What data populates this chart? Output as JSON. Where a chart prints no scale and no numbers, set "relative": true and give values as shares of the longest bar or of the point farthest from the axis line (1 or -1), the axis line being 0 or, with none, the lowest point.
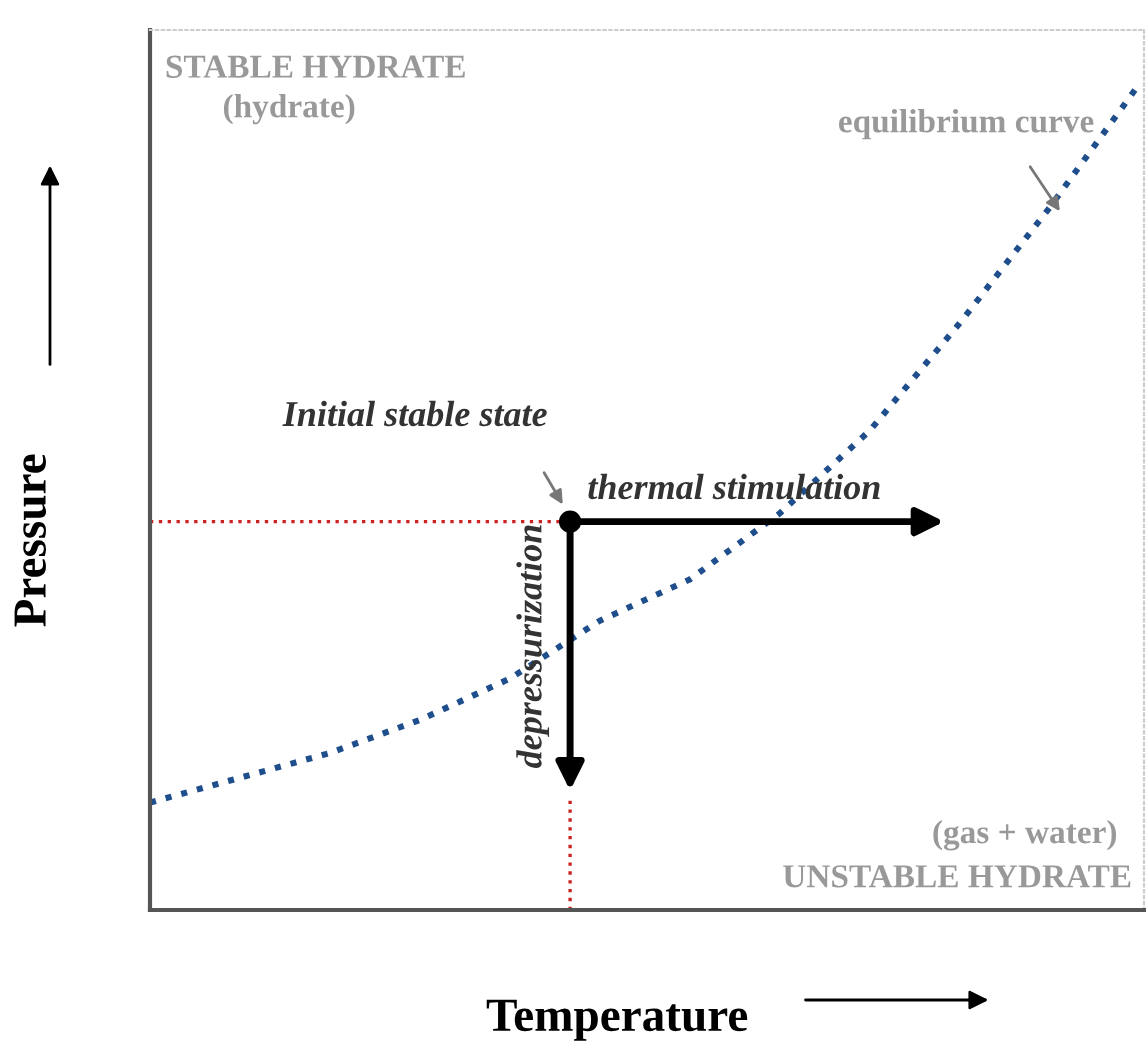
{
  "chart_data": {
    "type": "line",
    "relative": true,
    "xlabel": "Temperature",
    "ylabel": "Pressure",
    "categories": [
      null,
      null,
      null,
      null,
      null,
      null,
      null,
      null,
      null,
      null,
      null,
      null
    ],
    "series": [
      {
        "color": "#1f4e8c",
        "values": [
          0.13,
          0.16,
          0.19,
          0.23,
          0.28,
          0.35,
          0.4,
          0.48,
          0.58,
          0.71,
          0.85,
          1.0
        ]
      }
    ],
    "line_style": "dotted",
    "marker": "none",
    "grid": false,
    "legend": false,
    "annotations": [
      "STABLE HYDRATE",
      "(hydrate)",
      "equilibrium curve",
      "Initial stable state",
      "thermal stimulation",
      "depressurization",
      "(gas + water)",
      "UNSTABLE HYDRATE"
    ]
  }
}
